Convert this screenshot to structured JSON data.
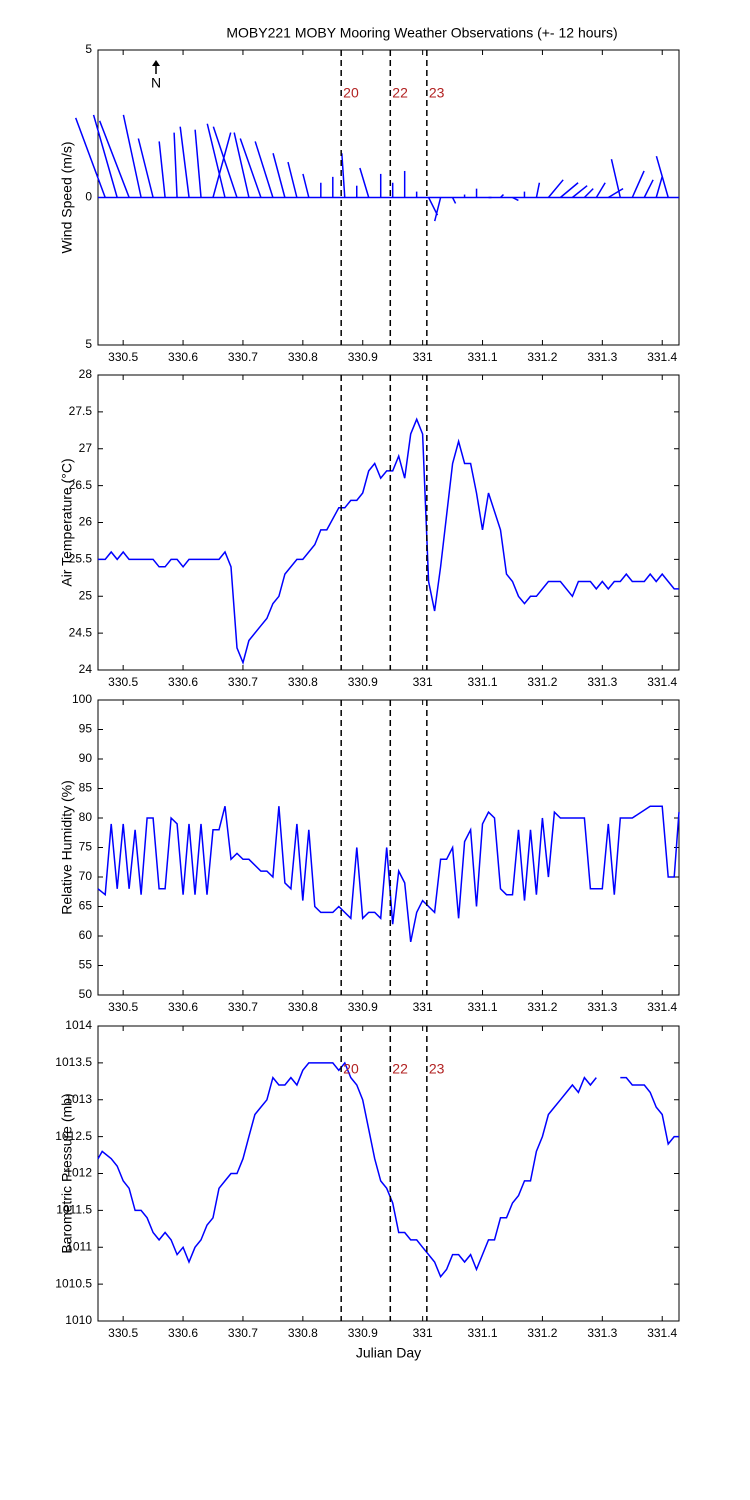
{
  "chart_data": [
    {
      "type": "stick",
      "title": "MOBY221 MOBY Mooring Weather Observations (+- 12 hours)",
      "ylabel": "Wind Speed (m/s)",
      "north": "N",
      "color": "#0000ff",
      "xlim": [
        330.458,
        331.428
      ],
      "xticks": [
        330.5,
        330.6,
        330.7,
        330.8,
        330.9,
        331,
        331.1,
        331.2,
        331.3,
        331.4
      ],
      "ylim": [
        -5,
        5
      ],
      "yticks": [
        {
          "value": -5,
          "label": "5"
        },
        0,
        {
          "value": 5,
          "label": "5"
        }
      ],
      "event_x": [
        330.864,
        330.946,
        331.007
      ],
      "event_labels": [
        "20",
        "22",
        "23"
      ],
      "x": [
        330.47,
        330.49,
        330.51,
        330.53,
        330.55,
        330.57,
        330.59,
        330.61,
        330.63,
        330.65,
        330.67,
        330.69,
        330.71,
        330.73,
        330.75,
        330.77,
        330.79,
        330.81,
        330.83,
        330.85,
        330.87,
        330.89,
        330.91,
        330.93,
        330.95,
        330.97,
        330.99,
        331.01,
        331.03,
        331.05,
        331.07,
        331.09,
        331.11,
        331.13,
        331.15,
        331.17,
        331.19,
        331.21,
        331.23,
        331.25,
        331.27,
        331.29,
        331.31,
        331.33,
        331.35,
        331.37,
        331.39,
        331.41
      ],
      "u": [
        -1.0,
        -0.8,
        -1.0,
        -0.6,
        -0.5,
        -0.2,
        -0.1,
        -0.3,
        -0.2,
        0.6,
        -0.6,
        -0.8,
        -0.5,
        -0.7,
        -0.6,
        -0.4,
        -0.3,
        -0.2,
        0.0,
        0.0,
        -0.1,
        0.0,
        -0.3,
        0.0,
        0.0,
        0.0,
        0.0,
        0.3,
        -0.2,
        0.1,
        0.0,
        0.0,
        0.1,
        0.1,
        0.2,
        0.0,
        0.1,
        0.5,
        0.6,
        0.5,
        0.3,
        0.3,
        0.5,
        -0.3,
        0.4,
        0.3,
        0.2,
        -0.4
      ],
      "v": [
        2.7,
        2.8,
        2.6,
        2.8,
        2.0,
        1.9,
        2.2,
        2.4,
        2.3,
        2.2,
        2.5,
        2.4,
        2.2,
        2.0,
        1.9,
        1.5,
        1.2,
        0.8,
        0.5,
        0.7,
        1.5,
        0.4,
        1.0,
        0.8,
        0.5,
        0.9,
        0.2,
        -0.6,
        -0.8,
        -0.2,
        0.1,
        0.3,
        0.0,
        0.1,
        -0.1,
        0.2,
        0.5,
        0.6,
        0.5,
        0.4,
        0.3,
        0.5,
        0.3,
        1.3,
        0.9,
        0.6,
        0.7,
        1.4
      ]
    },
    {
      "type": "line",
      "ylabel": "Air Temperature (°C)",
      "color": "#0000ff",
      "xlim": [
        330.458,
        331.428
      ],
      "xticks": [
        330.5,
        330.6,
        330.7,
        330.8,
        330.9,
        331,
        331.1,
        331.2,
        331.3,
        331.4
      ],
      "ylim": [
        24,
        28
      ],
      "yticks": [
        24,
        24.5,
        25,
        25.5,
        26,
        26.5,
        27,
        27.5,
        28
      ],
      "event_x": [
        330.864,
        330.946,
        331.007
      ],
      "x": [
        330.458,
        330.47,
        330.48,
        330.49,
        330.5,
        330.51,
        330.55,
        330.56,
        330.57,
        330.58,
        330.59,
        330.6,
        330.61,
        330.66,
        330.67,
        330.68,
        330.69,
        330.7,
        330.71,
        330.73,
        330.74,
        330.75,
        330.76,
        330.77,
        330.79,
        330.8,
        330.82,
        330.83,
        330.84,
        330.86,
        330.87,
        330.88,
        330.89,
        330.9,
        330.91,
        330.92,
        330.93,
        330.94,
        330.95,
        330.96,
        330.97,
        330.98,
        330.99,
        331,
        331.01,
        331.02,
        331.03,
        331.05,
        331.06,
        331.07,
        331.08,
        331.09,
        331.1,
        331.11,
        331.13,
        331.14,
        331.15,
        331.16,
        331.17,
        331.18,
        331.19,
        331.21,
        331.23,
        331.25,
        331.26,
        331.28,
        331.29,
        331.3,
        331.31,
        331.32,
        331.33,
        331.34,
        331.35,
        331.37,
        331.38,
        331.39,
        331.4,
        331.41,
        331.42,
        331.428
      ],
      "values": [
        25.5,
        25.5,
        25.6,
        25.5,
        25.6,
        25.5,
        25.5,
        25.4,
        25.4,
        25.5,
        25.5,
        25.4,
        25.5,
        25.5,
        25.6,
        25.4,
        24.3,
        24.1,
        24.4,
        24.6,
        24.7,
        24.9,
        25.0,
        25.3,
        25.5,
        25.5,
        25.7,
        25.9,
        25.9,
        26.2,
        26.2,
        26.3,
        26.3,
        26.4,
        26.7,
        26.8,
        26.6,
        26.7,
        26.7,
        26.9,
        26.6,
        27.2,
        27.4,
        27.2,
        25.2,
        24.8,
        25.4,
        26.8,
        27.1,
        26.8,
        26.8,
        26.4,
        25.9,
        26.4,
        25.9,
        25.3,
        25.2,
        25.0,
        24.9,
        25.0,
        25.0,
        25.2,
        25.2,
        25.0,
        25.2,
        25.2,
        25.1,
        25.2,
        25.1,
        25.2,
        25.2,
        25.3,
        25.2,
        25.2,
        25.3,
        25.2,
        25.3,
        25.2,
        25.1,
        25.1
      ]
    },
    {
      "type": "line",
      "ylabel": "Relative Humidity (%)",
      "color": "#0000ff",
      "xlim": [
        330.458,
        331.428
      ],
      "xticks": [
        330.5,
        330.6,
        330.7,
        330.8,
        330.9,
        331,
        331.1,
        331.2,
        331.3,
        331.4
      ],
      "ylim": [
        50,
        100
      ],
      "yticks": [
        50,
        55,
        60,
        65,
        70,
        75,
        80,
        85,
        90,
        95,
        100
      ],
      "event_x": [
        330.864,
        330.946,
        331.007
      ],
      "x": [
        330.458,
        330.47,
        330.48,
        330.49,
        330.5,
        330.51,
        330.52,
        330.53,
        330.54,
        330.55,
        330.56,
        330.57,
        330.58,
        330.59,
        330.6,
        330.61,
        330.62,
        330.63,
        330.64,
        330.65,
        330.66,
        330.67,
        330.68,
        330.69,
        330.7,
        330.71,
        330.73,
        330.74,
        330.75,
        330.76,
        330.77,
        330.78,
        330.79,
        330.8,
        330.81,
        330.82,
        330.83,
        330.85,
        330.86,
        330.88,
        330.89,
        330.9,
        330.91,
        330.92,
        330.93,
        330.94,
        330.95,
        330.96,
        330.97,
        330.98,
        330.99,
        331,
        331.02,
        331.03,
        331.04,
        331.05,
        331.06,
        331.07,
        331.08,
        331.09,
        331.1,
        331.11,
        331.12,
        331.13,
        331.14,
        331.15,
        331.16,
        331.17,
        331.18,
        331.19,
        331.2,
        331.21,
        331.22,
        331.23,
        331.27,
        331.28,
        331.3,
        331.31,
        331.32,
        331.33,
        331.35,
        331.38,
        331.4,
        331.41,
        331.42,
        331.428
      ],
      "values": [
        68,
        67,
        79,
        68,
        79,
        68,
        78,
        67,
        80,
        80,
        68,
        68,
        80,
        79,
        67,
        79,
        67,
        79,
        67,
        78,
        78,
        82,
        73,
        74,
        73,
        73,
        71,
        71,
        70,
        82,
        69,
        68,
        79,
        66,
        78,
        65,
        64,
        64,
        65,
        63,
        75,
        63,
        64,
        64,
        63,
        75,
        62,
        71,
        69,
        59,
        64,
        66,
        64,
        73,
        73,
        75,
        63,
        76,
        78,
        65,
        79,
        81,
        80,
        68,
        67,
        67,
        78,
        66,
        78,
        67,
        80,
        70,
        81,
        80,
        80,
        68,
        68,
        79,
        67,
        80,
        80,
        82,
        82,
        70,
        70,
        81
      ]
    },
    {
      "type": "line",
      "ylabel": "Barometric Pressure (mb)",
      "xlabel": "Julian Day",
      "color": "#0000ff",
      "xlim": [
        330.458,
        331.428
      ],
      "xticks": [
        330.5,
        330.6,
        330.7,
        330.8,
        330.9,
        331,
        331.1,
        331.2,
        331.3,
        331.4
      ],
      "ylim": [
        1010,
        1014
      ],
      "yticks": [
        1010,
        1010.5,
        1011,
        1011.5,
        1012,
        1012.5,
        1013,
        1013.5,
        1014
      ],
      "event_x": [
        330.864,
        330.946,
        331.007
      ],
      "event_labels": [
        "20",
        "22",
        "23"
      ],
      "x": [
        330.458,
        330.465,
        330.48,
        330.49,
        330.5,
        330.51,
        330.52,
        330.53,
        330.54,
        330.55,
        330.56,
        330.57,
        330.58,
        330.59,
        330.6,
        330.61,
        330.62,
        330.63,
        330.64,
        330.65,
        330.66,
        330.67,
        330.68,
        330.69,
        330.7,
        330.71,
        330.72,
        330.73,
        330.74,
        330.75,
        330.76,
        330.77,
        330.78,
        330.79,
        330.8,
        330.81,
        330.82,
        330.85,
        330.86,
        330.87,
        330.88,
        330.89,
        330.9,
        330.91,
        330.92,
        330.93,
        330.94,
        330.95,
        330.96,
        330.97,
        330.98,
        330.99,
        331,
        331.01,
        331.02,
        331.03,
        331.04,
        331.05,
        331.06,
        331.07,
        331.08,
        331.09,
        331.1,
        331.11,
        331.12,
        331.13,
        331.14,
        331.15,
        331.16,
        331.17,
        331.18,
        331.19,
        331.2,
        331.21,
        331.22,
        331.23,
        331.24,
        331.25,
        331.26,
        331.27,
        331.28,
        331.29,
        331.31,
        331.33,
        331.34,
        331.35,
        331.37,
        331.38,
        331.39,
        331.4,
        331.41,
        331.42,
        331.428
      ],
      "values": [
        1012.2,
        1012.3,
        1012.2,
        1012.1,
        1011.9,
        1011.8,
        1011.5,
        1011.5,
        1011.4,
        1011.2,
        1011.1,
        1011.2,
        1011.1,
        1010.9,
        1011.0,
        1010.8,
        1011.0,
        1011.1,
        1011.3,
        1011.4,
        1011.8,
        1011.9,
        1012.0,
        1012.0,
        1012.2,
        1012.5,
        1012.8,
        1012.9,
        1013.0,
        1013.3,
        1013.2,
        1013.2,
        1013.3,
        1013.2,
        1013.4,
        1013.5,
        1013.5,
        1013.5,
        1013.4,
        1013.5,
        1013.3,
        1013.2,
        1013.0,
        1012.6,
        1012.2,
        1011.9,
        1011.8,
        1011.6,
        1011.2,
        1011.2,
        1011.1,
        1011.1,
        1011.0,
        1010.9,
        1010.8,
        1010.6,
        1010.7,
        1010.9,
        1010.9,
        1010.8,
        1010.9,
        1010.7,
        1010.9,
        1011.1,
        1011.1,
        1011.4,
        1011.4,
        1011.6,
        1011.7,
        1011.9,
        1011.9,
        1012.3,
        1012.5,
        1012.8,
        1012.9,
        1013.0,
        1013.1,
        1013.2,
        1013.1,
        1013.3,
        1013.2,
        1013.3,
        null,
        1013.3,
        1013.3,
        1013.2,
        1013.2,
        1013.1,
        1012.9,
        1012.8,
        1012.4,
        1012.5,
        1012.5
      ]
    }
  ]
}
